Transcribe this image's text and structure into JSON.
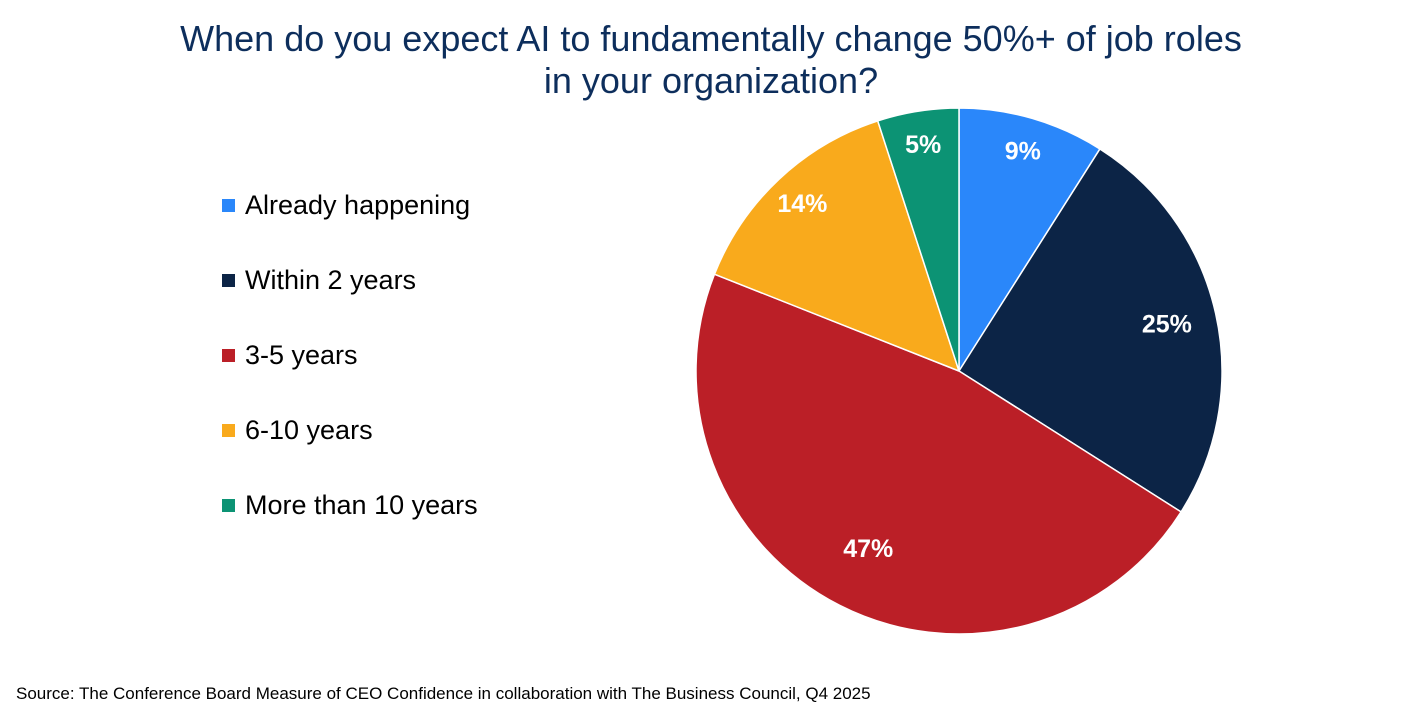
{
  "chart_data": {
    "type": "pie",
    "title_lines": [
      "When do you expect AI to fundamentally change 50%+ of job roles",
      "in your organization?"
    ],
    "slices": [
      {
        "label": "Already happening",
        "value": 9,
        "display": "9%",
        "color": "#2a87fa"
      },
      {
        "label": "Within 2 years",
        "value": 25,
        "display": "25%",
        "color": "#0c2446"
      },
      {
        "label": "3-5 years",
        "value": 47,
        "display": "47%",
        "color": "#bb1f27"
      },
      {
        "label": "6-10 years",
        "value": 14,
        "display": "14%",
        "color": "#f9aa1c"
      },
      {
        "label": "More than 10 years",
        "value": 5,
        "display": "5%",
        "color": "#0c9374"
      }
    ],
    "start_angle": "12 o'clock",
    "direction": "clockwise",
    "legend_position": "left"
  },
  "source": "Source: The Conference Board Measure of CEO Confidence in collaboration with The Business Council, Q4 2025"
}
